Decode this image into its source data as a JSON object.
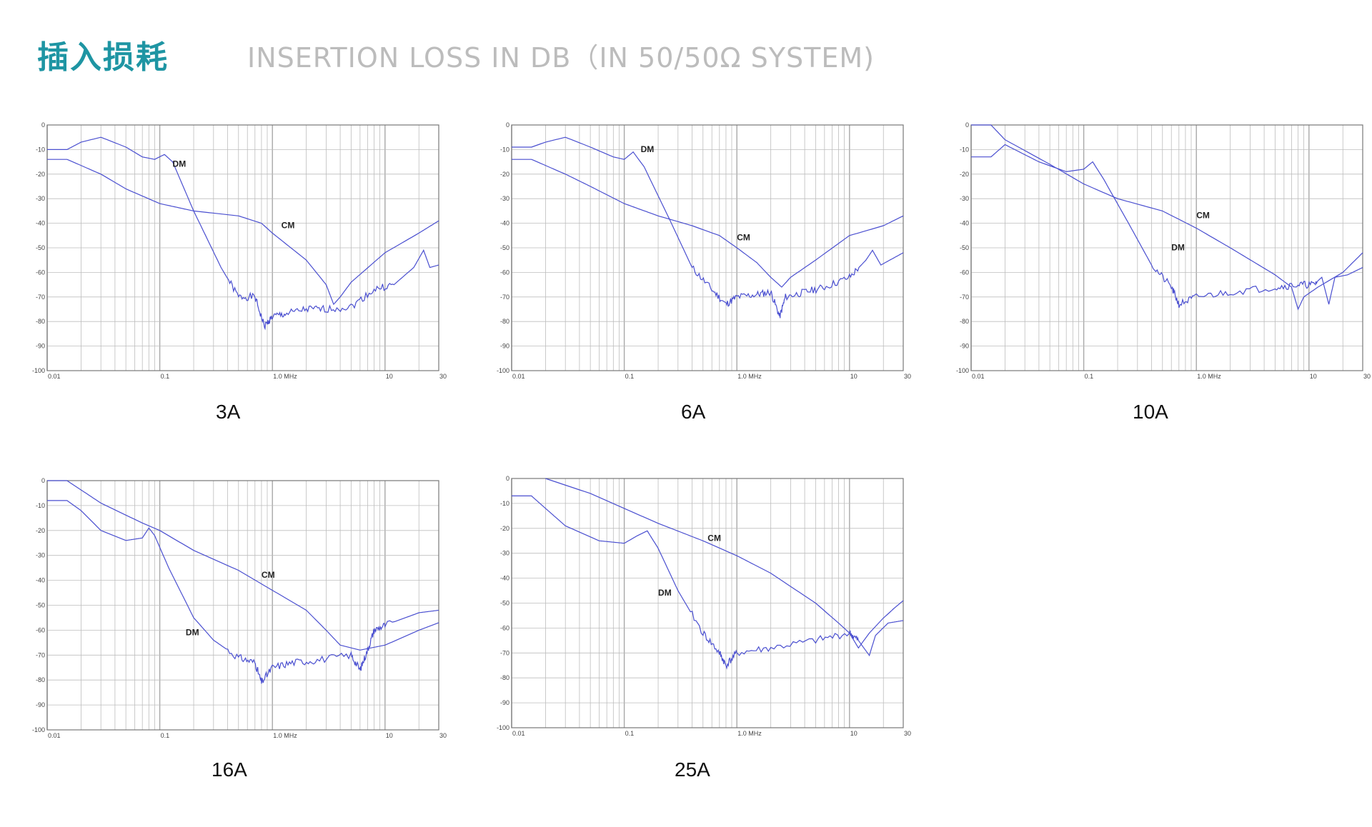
{
  "header": {
    "title_cn": "插入损耗",
    "title_en": "INSERTION LOSS IN DB（IN 50/50Ω SYSTEM)"
  },
  "colors": {
    "accent": "#1e95a3",
    "subtitle": "#bcbcbc",
    "curve": "#4a4fd0",
    "grid": "#bdbdbd",
    "frame": "#777777"
  },
  "chart_data": [
    {
      "type": "line",
      "caption": "3A",
      "x_scale": "log",
      "xlim": [
        0.01,
        30
      ],
      "ylim": [
        -100,
        0
      ],
      "x_ticks": [
        {
          "v": 0.01,
          "label": "0.01"
        },
        {
          "v": 0.1,
          "label": "0.1"
        },
        {
          "v": 1,
          "label": "1.0  MHz"
        },
        {
          "v": 10,
          "label": "10"
        },
        {
          "v": 30,
          "label": "30"
        }
      ],
      "y_ticks": [
        0,
        -10,
        -20,
        -30,
        -40,
        -50,
        -60,
        -70,
        -80,
        -90,
        -100
      ],
      "grid": true,
      "series": [
        {
          "name": "DM",
          "label_at": [
            0.13,
            -17
          ],
          "points": [
            [
              0.01,
              -10
            ],
            [
              0.015,
              -10
            ],
            [
              0.02,
              -7
            ],
            [
              0.03,
              -5
            ],
            [
              0.05,
              -9
            ],
            [
              0.07,
              -13
            ],
            [
              0.09,
              -14
            ],
            [
              0.11,
              -12
            ],
            [
              0.13,
              -15
            ],
            [
              0.2,
              -35
            ],
            [
              0.35,
              -58
            ],
            [
              0.5,
              -70
            ],
            [
              0.7,
              -70
            ],
            [
              0.85,
              -82
            ],
            [
              1.0,
              -78
            ],
            [
              1.3,
              -77
            ],
            [
              2.0,
              -75
            ],
            [
              3.0,
              -75
            ],
            [
              5.0,
              -74
            ],
            [
              8.0,
              -67
            ],
            [
              12.0,
              -65
            ],
            [
              18.0,
              -58
            ],
            [
              22.0,
              -51
            ],
            [
              25.0,
              -58
            ],
            [
              30.0,
              -57
            ]
          ]
        },
        {
          "name": "CM",
          "label_at": [
            1.2,
            -42
          ],
          "points": [
            [
              0.01,
              -14
            ],
            [
              0.015,
              -14
            ],
            [
              0.03,
              -20
            ],
            [
              0.05,
              -26
            ],
            [
              0.1,
              -32
            ],
            [
              0.2,
              -35
            ],
            [
              0.5,
              -37
            ],
            [
              0.8,
              -40
            ],
            [
              1.0,
              -44
            ],
            [
              2.0,
              -55
            ],
            [
              3.0,
              -65
            ],
            [
              3.5,
              -73
            ],
            [
              4.0,
              -70
            ],
            [
              5.0,
              -64
            ],
            [
              10.0,
              -52
            ],
            [
              20.0,
              -44
            ],
            [
              30.0,
              -39
            ]
          ]
        }
      ]
    },
    {
      "type": "line",
      "caption": "6A",
      "x_scale": "log",
      "xlim": [
        0.01,
        30
      ],
      "ylim": [
        -100,
        0
      ],
      "x_ticks": [
        {
          "v": 0.01,
          "label": "0.01"
        },
        {
          "v": 0.1,
          "label": "0.1"
        },
        {
          "v": 1,
          "label": "1.0  MHz"
        },
        {
          "v": 10,
          "label": "10"
        },
        {
          "v": 30,
          "label": "30"
        }
      ],
      "y_ticks": [
        0,
        -10,
        -20,
        -30,
        -40,
        -50,
        -60,
        -70,
        -80,
        -90,
        -100
      ],
      "grid": true,
      "series": [
        {
          "name": "DM",
          "label_at": [
            0.14,
            -11
          ],
          "points": [
            [
              0.01,
              -9
            ],
            [
              0.015,
              -9
            ],
            [
              0.02,
              -7
            ],
            [
              0.03,
              -5
            ],
            [
              0.05,
              -9
            ],
            [
              0.08,
              -13
            ],
            [
              0.1,
              -14
            ],
            [
              0.12,
              -11
            ],
            [
              0.15,
              -17
            ],
            [
              0.25,
              -38
            ],
            [
              0.4,
              -58
            ],
            [
              0.6,
              -67
            ],
            [
              0.8,
              -73
            ],
            [
              1.0,
              -70
            ],
            [
              1.5,
              -69
            ],
            [
              2.0,
              -68
            ],
            [
              2.4,
              -78
            ],
            [
              2.7,
              -70
            ],
            [
              4.0,
              -68
            ],
            [
              6.0,
              -66
            ],
            [
              10.0,
              -62
            ],
            [
              14.0,
              -55
            ],
            [
              16.0,
              -51
            ],
            [
              19.0,
              -57
            ],
            [
              30.0,
              -52
            ]
          ]
        },
        {
          "name": "CM",
          "label_at": [
            1.0,
            -47
          ],
          "points": [
            [
              0.01,
              -14
            ],
            [
              0.015,
              -14
            ],
            [
              0.03,
              -20
            ],
            [
              0.05,
              -25
            ],
            [
              0.1,
              -32
            ],
            [
              0.2,
              -37
            ],
            [
              0.4,
              -41
            ],
            [
              0.7,
              -45
            ],
            [
              1.0,
              -50
            ],
            [
              1.5,
              -56
            ],
            [
              2.0,
              -62
            ],
            [
              2.5,
              -66
            ],
            [
              3.0,
              -62
            ],
            [
              5.0,
              -55
            ],
            [
              10.0,
              -45
            ],
            [
              20.0,
              -41
            ],
            [
              30.0,
              -37
            ]
          ]
        }
      ]
    },
    {
      "type": "line",
      "caption": "10A",
      "x_scale": "log",
      "xlim": [
        0.01,
        30
      ],
      "ylim": [
        -100,
        0
      ],
      "x_ticks": [
        {
          "v": 0.01,
          "label": "0.01"
        },
        {
          "v": 0.1,
          "label": "0.1"
        },
        {
          "v": 1,
          "label": "1.0  MHz"
        },
        {
          "v": 10,
          "label": "10"
        },
        {
          "v": 30,
          "label": "30"
        }
      ],
      "y_ticks": [
        0,
        -10,
        -20,
        -30,
        -40,
        -50,
        -60,
        -70,
        -80,
        -90,
        -100
      ],
      "grid": true,
      "series": [
        {
          "name": "DM",
          "label_at": [
            0.6,
            -51
          ],
          "points": [
            [
              0.01,
              -13
            ],
            [
              0.015,
              -13
            ],
            [
              0.02,
              -8
            ],
            [
              0.04,
              -15
            ],
            [
              0.07,
              -19
            ],
            [
              0.1,
              -18
            ],
            [
              0.12,
              -15
            ],
            [
              0.15,
              -22
            ],
            [
              0.25,
              -40
            ],
            [
              0.4,
              -57
            ],
            [
              0.6,
              -66
            ],
            [
              0.7,
              -73
            ],
            [
              1.0,
              -70
            ],
            [
              2.0,
              -68
            ],
            [
              5.0,
              -66
            ],
            [
              8.0,
              -65
            ],
            [
              11.0,
              -65
            ],
            [
              13.0,
              -62
            ],
            [
              15.0,
              -73
            ],
            [
              17.0,
              -62
            ],
            [
              22.0,
              -61
            ],
            [
              30.0,
              -58
            ]
          ]
        },
        {
          "name": "CM",
          "label_at": [
            1.0,
            -38
          ],
          "points": [
            [
              0.01,
              0
            ],
            [
              0.015,
              0
            ],
            [
              0.02,
              -6
            ],
            [
              0.05,
              -16
            ],
            [
              0.1,
              -24
            ],
            [
              0.2,
              -30
            ],
            [
              0.5,
              -35
            ],
            [
              1.0,
              -42
            ],
            [
              2.0,
              -50
            ],
            [
              5.0,
              -61
            ],
            [
              7.0,
              -66
            ],
            [
              8.0,
              -75
            ],
            [
              9.0,
              -70
            ],
            [
              12.0,
              -66
            ],
            [
              20.0,
              -60
            ],
            [
              30.0,
              -52
            ]
          ]
        }
      ]
    },
    {
      "type": "line",
      "caption": "16A",
      "x_scale": "log",
      "xlim": [
        0.01,
        30
      ],
      "ylim": [
        -100,
        0
      ],
      "x_ticks": [
        {
          "v": 0.01,
          "label": "0.01"
        },
        {
          "v": 0.1,
          "label": "0.1"
        },
        {
          "v": 1,
          "label": "1.0  MHz"
        },
        {
          "v": 10,
          "label": "10"
        },
        {
          "v": 30,
          "label": "30"
        }
      ],
      "y_ticks": [
        0,
        -10,
        -20,
        -30,
        -40,
        -50,
        -60,
        -70,
        -80,
        -90,
        -100
      ],
      "grid": true,
      "series": [
        {
          "name": "DM",
          "label_at": [
            0.17,
            -62
          ],
          "points": [
            [
              0.01,
              -8
            ],
            [
              0.015,
              -8
            ],
            [
              0.02,
              -12
            ],
            [
              0.03,
              -20
            ],
            [
              0.05,
              -24
            ],
            [
              0.07,
              -23
            ],
            [
              0.08,
              -19
            ],
            [
              0.09,
              -22
            ],
            [
              0.12,
              -35
            ],
            [
              0.2,
              -55
            ],
            [
              0.3,
              -64
            ],
            [
              0.5,
              -71
            ],
            [
              0.7,
              -73
            ],
            [
              0.8,
              -81
            ],
            [
              1.0,
              -75
            ],
            [
              1.5,
              -73
            ],
            [
              2.5,
              -72
            ],
            [
              5.0,
              -70
            ],
            [
              6.0,
              -76
            ],
            [
              7.0,
              -68
            ],
            [
              8.0,
              -60
            ],
            [
              10.0,
              -58
            ],
            [
              20.0,
              -53
            ],
            [
              30.0,
              -52
            ]
          ]
        },
        {
          "name": "CM",
          "label_at": [
            0.8,
            -39
          ],
          "points": [
            [
              0.01,
              0
            ],
            [
              0.015,
              0
            ],
            [
              0.03,
              -9
            ],
            [
              0.07,
              -17
            ],
            [
              0.1,
              -20
            ],
            [
              0.2,
              -28
            ],
            [
              0.5,
              -36
            ],
            [
              1.0,
              -44
            ],
            [
              2.0,
              -52
            ],
            [
              3.0,
              -60
            ],
            [
              4.0,
              -66
            ],
            [
              6.0,
              -68
            ],
            [
              10.0,
              -66
            ],
            [
              20.0,
              -60
            ],
            [
              30.0,
              -57
            ]
          ]
        }
      ]
    },
    {
      "type": "line",
      "caption": "25A",
      "x_scale": "log",
      "xlim": [
        0.01,
        30
      ],
      "ylim": [
        -100,
        0
      ],
      "x_ticks": [
        {
          "v": 0.01,
          "label": "0.01"
        },
        {
          "v": 0.1,
          "label": "0.1"
        },
        {
          "v": 1,
          "label": "1.0  MHz"
        },
        {
          "v": 10,
          "label": "10"
        },
        {
          "v": 30,
          "label": "30"
        }
      ],
      "y_ticks": [
        0,
        -10,
        -20,
        -30,
        -40,
        -50,
        -60,
        -70,
        -80,
        -90,
        -100
      ],
      "grid": true,
      "series": [
        {
          "name": "DM",
          "label_at": [
            0.2,
            -47
          ],
          "points": [
            [
              0.01,
              -7
            ],
            [
              0.015,
              -7
            ],
            [
              0.02,
              -12
            ],
            [
              0.03,
              -19
            ],
            [
              0.06,
              -25
            ],
            [
              0.1,
              -26
            ],
            [
              0.13,
              -23
            ],
            [
              0.16,
              -21
            ],
            [
              0.2,
              -28
            ],
            [
              0.3,
              -45
            ],
            [
              0.5,
              -62
            ],
            [
              0.7,
              -70
            ],
            [
              0.8,
              -75
            ],
            [
              1.0,
              -70
            ],
            [
              2.0,
              -68
            ],
            [
              5.0,
              -65
            ],
            [
              10.0,
              -62
            ],
            [
              12.0,
              -65
            ],
            [
              15.0,
              -71
            ],
            [
              17.0,
              -63
            ],
            [
              22.0,
              -58
            ],
            [
              30.0,
              -57
            ]
          ]
        },
        {
          "name": "CM",
          "label_at": [
            0.55,
            -25
          ],
          "points": [
            [
              0.02,
              0
            ],
            [
              0.05,
              -6
            ],
            [
              0.1,
              -12
            ],
            [
              0.2,
              -18
            ],
            [
              0.5,
              -25
            ],
            [
              1.0,
              -31
            ],
            [
              2.0,
              -38
            ],
            [
              5.0,
              -50
            ],
            [
              8.0,
              -58
            ],
            [
              10.0,
              -62
            ],
            [
              12.0,
              -68
            ],
            [
              15.0,
              -62
            ],
            [
              20.0,
              -56
            ],
            [
              25.0,
              -52
            ],
            [
              30.0,
              -49
            ]
          ]
        }
      ]
    }
  ]
}
